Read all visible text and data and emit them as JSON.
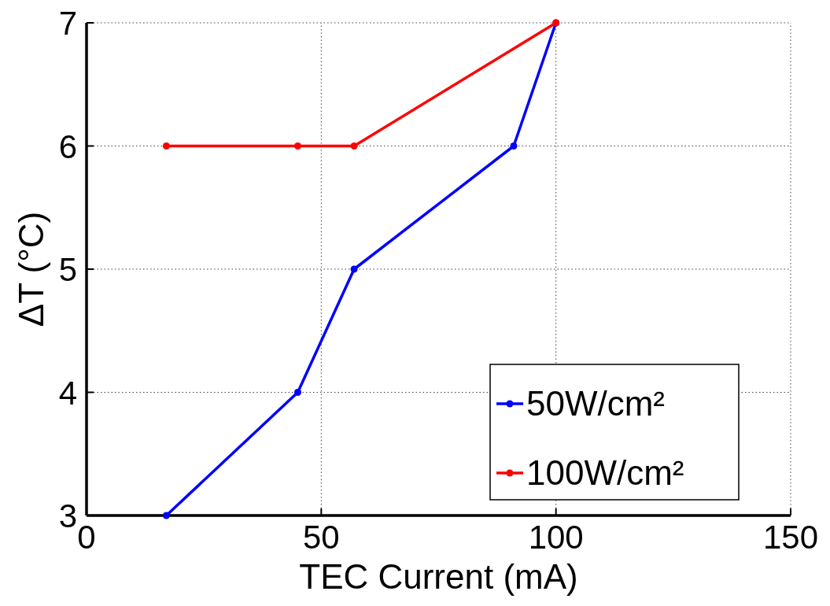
{
  "chart_data": {
    "type": "line",
    "xlabel": "TEC Current (mA)",
    "ylabel": "ΔT (°C)",
    "xlim": [
      0,
      150
    ],
    "xticks": [
      0,
      50,
      100,
      150
    ],
    "ylim": [
      3,
      7
    ],
    "yticks": [
      3,
      4,
      5,
      6,
      7
    ],
    "grid": true,
    "legend": "bottom right",
    "marker": "circle",
    "line_style": "solid",
    "series": [
      {
        "name": "50W/cm²",
        "color": "#0000ff",
        "x": [
          17,
          45,
          57,
          91,
          100
        ],
        "values": [
          3,
          4,
          5,
          6,
          7
        ]
      },
      {
        "name": "100W/cm²",
        "color": "#ff0000",
        "x": [
          17,
          45,
          57,
          100
        ],
        "values": [
          6,
          6,
          6,
          7
        ]
      }
    ]
  }
}
